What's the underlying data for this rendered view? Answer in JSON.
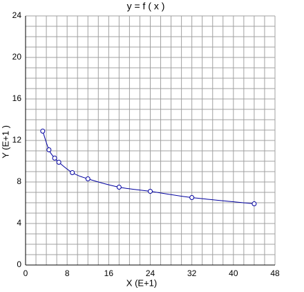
{
  "chart_data": {
    "type": "scatter",
    "title": "y = f ( x )",
    "x_label": "X (E+1)",
    "y_label": "Y (E+1 )",
    "x": [
      3.3,
      4.5,
      5.6,
      6.4,
      9,
      12,
      18,
      24,
      32,
      44
    ],
    "series": [
      {
        "color": "#0000a0",
        "values": [
          12.9,
          11.1,
          10.3,
          9.9,
          8.9,
          8.3,
          7.5,
          7.1,
          6.5,
          5.9
        ]
      }
    ],
    "xlim": [
      0,
      48
    ],
    "xticks": [
      0,
      8,
      16,
      24,
      32,
      40,
      48
    ],
    "ylim": [
      0,
      24
    ],
    "yticks": [
      0,
      4,
      8,
      12,
      16,
      20,
      24
    ],
    "grid": true,
    "grid_subdivisions": 4
  }
}
